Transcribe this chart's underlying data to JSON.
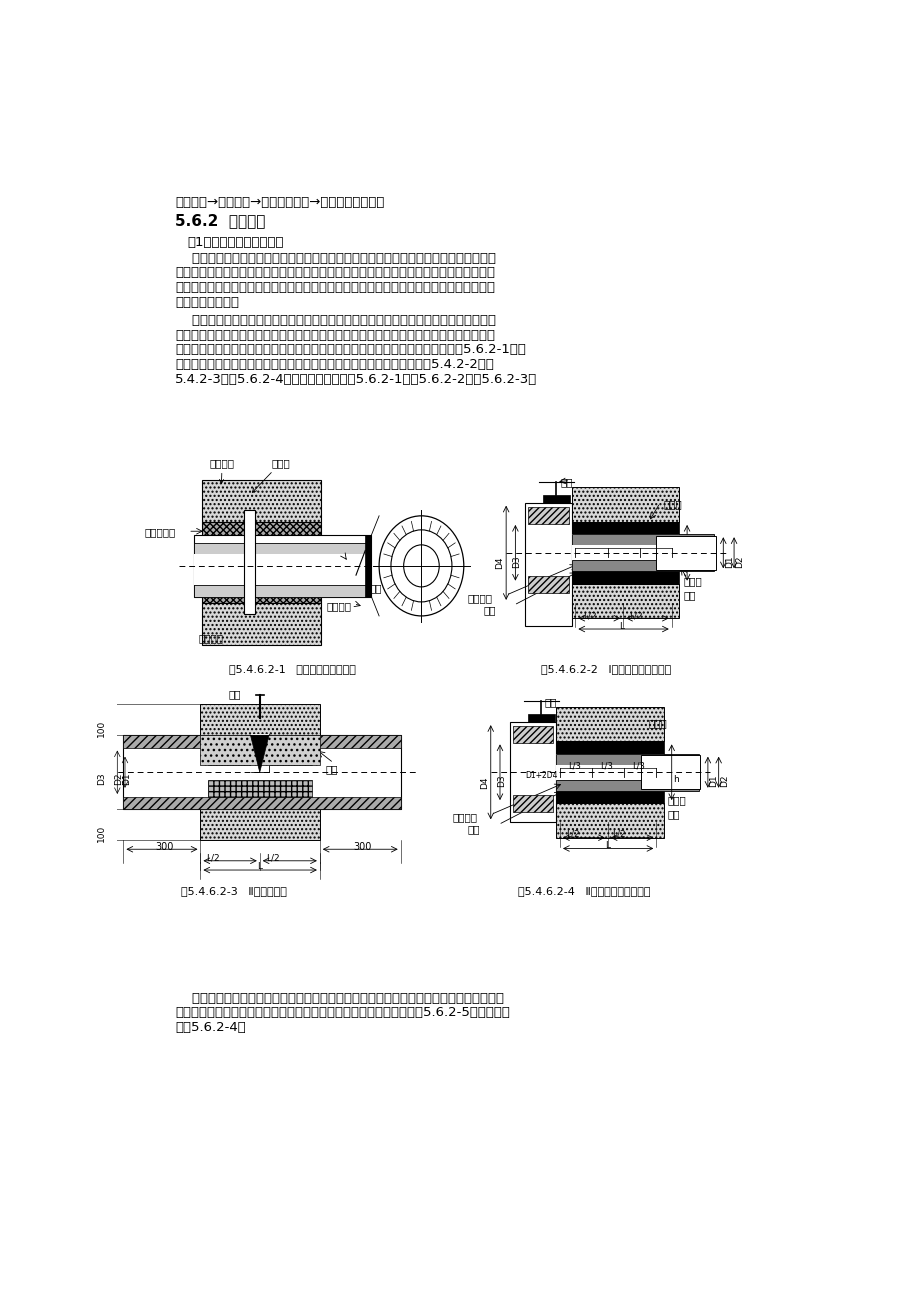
{
  "title_line": "模板支设→浇混凝土→防水材料嵌填→封口钢板焊接试水",
  "section_title": "5.6.2  操作工艺",
  "para1_title": "（1）套管加焊止水环法：",
  "para1_text1_lines": [
    "    在管道穿过防水混凝土结构处，预埋套管，防水套管的刚性或柔性做法由设计选定，套",
    "管上加焊止水环，套管与止水环必须一次浇固于混凝土结构内，且与套管相接的混凝土必须",
    "浇捣密实。止水环应与套管满焊严密，止水环数量按设计规定。套管部分加工完成后在其内",
    "壁刷防锈漆一道。"
  ],
  "para1_text2_lines": [
    "    安装穿墙管道时，对于刚性防水套管，先将管道穿过预埋套管，按图将位置尺寸找准，",
    "予以临时固定，然后一端以封口钢板将套管及穿墙管焊牢，再从另一端将套管与端管之间的",
    "缝隙以防水材料（防水油膏、沥青玛王帝脂等）填满后，用封口钢板封堵严密（图5.6.2-1）。",
    "亦可于套管与穿墙之间加挡圈，两边嵌　油麻和石棉水泥。具体做法见图5.4.2-2、图",
    "5.4.2-3、图5.6.2-4。套管尺寸分别见表5.6.2-1、表5.6.2-2、表5.6.2-3。"
  ],
  "para2_lines": [
    "    对于管道穿过墙壁处受有振动或有严密防水要求的构筑物，应采用柔性防水套管的做法，",
    "在套管与管道间加橡皮圈，并用法兰压紧。柔性防水套管具体做法见图5.6.2-5，套管尺寸",
    "见表5.6.2-4。"
  ],
  "fig1_caption": "图5.4.6.2-1   套管加焊止水环做法",
  "fig2_caption": "图5.4.6.2-2   I型刚性防水套管做法",
  "fig3_caption": "图5.4.6.2-3   Ⅱ型翼环做法",
  "fig4_caption": "图5.4.6.2-4   Ⅱ型刚性防水套管做法",
  "bg": "#ffffff"
}
